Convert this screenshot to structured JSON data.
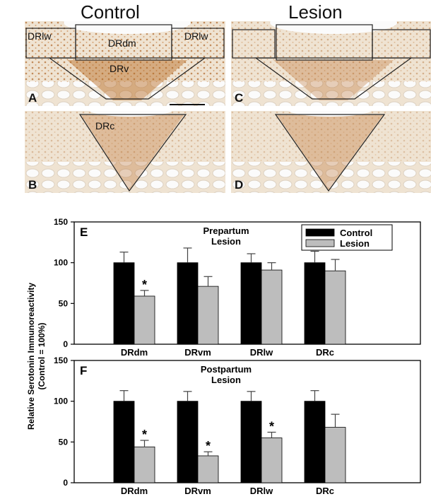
{
  "micrographs": {
    "col_control": "Control",
    "col_lesion": "Lesion",
    "panels": [
      {
        "letter": "A",
        "regions": [
          "DRlw",
          "DRdm",
          "DRlw",
          "DRv"
        ]
      },
      {
        "letter": "B",
        "regions": [
          "DRc"
        ]
      },
      {
        "letter": "C",
        "regions": []
      },
      {
        "letter": "D",
        "regions": []
      }
    ]
  },
  "colors": {
    "tissue_bg": "#efe3d2",
    "tissue_stain": "#b5651d",
    "ventricle": "#fbfbfb",
    "control_bar": "#000000",
    "lesion_bar": "#bdbdbd"
  },
  "chart_data": {
    "type": "bar",
    "ylabel": "Relative Serotonin Immunoreactivity (Control = 100%)",
    "ylabel_lines": [
      "Relative Serotonin Immunoreactivity",
      "(Control = 100%)"
    ],
    "legend": [
      "Control",
      "Lesion"
    ],
    "legend_position": "top-right",
    "grid": false,
    "ylim": [
      0,
      150
    ],
    "yticks": [
      0,
      50,
      100,
      150
    ],
    "panels": [
      {
        "letter": "E",
        "title_lines": [
          "Prepartum",
          "Lesion"
        ],
        "categories": [
          "DRdm",
          "DRvm",
          "DRlw",
          "DRc"
        ],
        "series": [
          {
            "name": "Control",
            "values": [
              100,
              100,
              100,
              100
            ],
            "errors": [
              13,
              18,
              11,
              14
            ]
          },
          {
            "name": "Lesion",
            "values": [
              59,
              71,
              91,
              90
            ],
            "errors": [
              7,
              12,
              9,
              14
            ]
          }
        ],
        "significant": [
          true,
          false,
          false,
          false
        ],
        "sig_marker": "*"
      },
      {
        "letter": "F",
        "title_lines": [
          "Postpartum",
          "Lesion"
        ],
        "categories": [
          "DRdm",
          "DRvm",
          "DRlw",
          "DRc"
        ],
        "series": [
          {
            "name": "Control",
            "values": [
              100,
              100,
              100,
              100
            ],
            "errors": [
              13,
              12,
              12,
              13
            ]
          },
          {
            "name": "Lesion",
            "values": [
              44,
              33,
              55,
              68
            ],
            "errors": [
              8,
              5,
              7,
              16
            ]
          }
        ],
        "significant": [
          true,
          true,
          true,
          false
        ],
        "sig_marker": "*"
      }
    ]
  }
}
